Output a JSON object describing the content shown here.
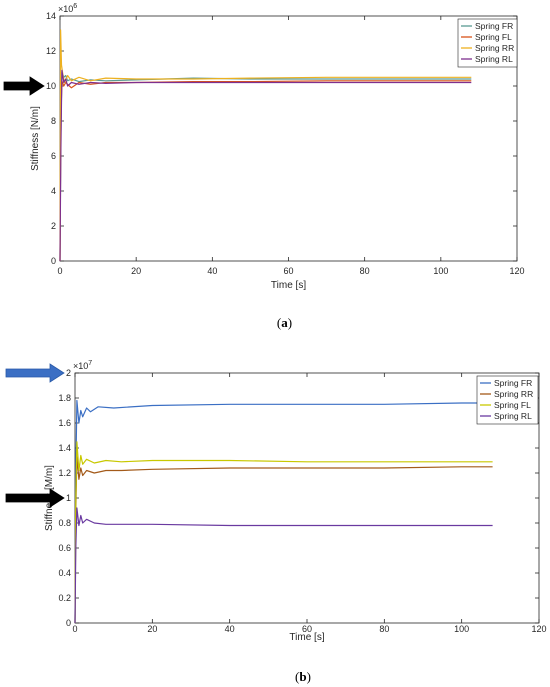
{
  "chart_data": [
    {
      "type": "line",
      "caption": {
        "open": "(",
        "letter": "a",
        "close": ")"
      },
      "xlabel": "Time [s]",
      "ylabel": "Stiffness [N/m]",
      "exponent": {
        "base": "×10",
        "power": "6"
      },
      "xlim": [
        0,
        120
      ],
      "ylim": [
        0,
        14
      ],
      "xticks": [
        "0",
        "20",
        "40",
        "60",
        "80",
        "100",
        "120"
      ],
      "yticks": [
        "0",
        "2",
        "4",
        "6",
        "8",
        "10",
        "12",
        "14"
      ],
      "legend_position": "top-right",
      "arrows": [
        {
          "color": "#000000",
          "y": 10
        }
      ],
      "series": [
        {
          "name": "Spring FR",
          "color": "#5b9a93",
          "x": [
            0,
            0.2,
            0.5,
            1,
            1.5,
            2,
            3,
            5,
            8,
            12,
            20,
            35,
            50,
            70,
            90,
            108
          ],
          "y": [
            0,
            7,
            10.8,
            10.5,
            10.6,
            10.3,
            10.4,
            10.25,
            10.35,
            10.3,
            10.35,
            10.45,
            10.4,
            10.4,
            10.4,
            10.4
          ]
        },
        {
          "name": "Spring FL",
          "color": "#d95319",
          "x": [
            0,
            0.2,
            0.5,
            1,
            1.5,
            2,
            3,
            5,
            8,
            12,
            20,
            35,
            50,
            70,
            90,
            108
          ],
          "y": [
            0,
            8,
            10.3,
            10.0,
            10.2,
            10.1,
            9.9,
            10.2,
            10.1,
            10.2,
            10.2,
            10.25,
            10.25,
            10.3,
            10.3,
            10.3
          ]
        },
        {
          "name": "Spring RR",
          "color": "#edb120",
          "x": [
            0,
            0.15,
            0.4,
            0.8,
            1.2,
            2,
            3,
            5,
            8,
            12,
            20,
            35,
            50,
            70,
            90,
            108
          ],
          "y": [
            0,
            13.2,
            11.2,
            10.6,
            10.2,
            10.6,
            10.3,
            10.5,
            10.3,
            10.45,
            10.4,
            10.4,
            10.45,
            10.5,
            10.5,
            10.5
          ]
        },
        {
          "name": "Spring RL",
          "color": "#7e2f8e",
          "x": [
            0,
            0.2,
            0.5,
            1,
            1.5,
            2,
            3,
            5,
            8,
            12,
            20,
            35,
            50,
            70,
            90,
            108
          ],
          "y": [
            0,
            6,
            10.9,
            10.2,
            10.4,
            10.0,
            10.2,
            10.1,
            10.2,
            10.15,
            10.2,
            10.2,
            10.2,
            10.2,
            10.2,
            10.2
          ]
        }
      ]
    },
    {
      "type": "line",
      "caption": {
        "open": "(",
        "letter": "b",
        "close": ")"
      },
      "xlabel": "Time [s]",
      "ylabel": "Stiffness [M/m]",
      "exponent": {
        "base": "×10",
        "power": "7"
      },
      "xlim": [
        0,
        120
      ],
      "ylim": [
        0,
        2
      ],
      "xticks": [
        "0",
        "20",
        "40",
        "60",
        "80",
        "100",
        "120"
      ],
      "yticks": [
        "0",
        "0.2",
        "0.4",
        "0.6",
        "0.8",
        "1",
        "1.2",
        "1.4",
        "1.6",
        "1.8",
        "2"
      ],
      "legend_position": "top-right",
      "arrows": [
        {
          "color": "#3b6fc4",
          "y": 2
        },
        {
          "color": "#000000",
          "y": 1.0
        }
      ],
      "series": [
        {
          "name": "Spring FR",
          "color": "#3b6fc4",
          "x": [
            0,
            0.2,
            0.5,
            1,
            1.5,
            2,
            3,
            4,
            6,
            10,
            20,
            40,
            60,
            80,
            100,
            108
          ],
          "y": [
            0,
            1.2,
            1.78,
            1.6,
            1.7,
            1.65,
            1.72,
            1.69,
            1.73,
            1.72,
            1.74,
            1.75,
            1.75,
            1.75,
            1.76,
            1.76
          ]
        },
        {
          "name": "Spring RR",
          "color": "#a35a1a",
          "x": [
            0,
            0.2,
            0.5,
            1,
            1.5,
            2,
            3,
            5,
            8,
            12,
            20,
            40,
            60,
            80,
            100,
            108
          ],
          "y": [
            0,
            0.9,
            1.33,
            1.15,
            1.24,
            1.18,
            1.22,
            1.2,
            1.22,
            1.22,
            1.23,
            1.24,
            1.24,
            1.24,
            1.25,
            1.25
          ]
        },
        {
          "name": "Spring FL",
          "color": "#c8c800",
          "x": [
            0,
            0.2,
            0.5,
            1,
            1.5,
            2,
            3,
            5,
            8,
            12,
            20,
            40,
            60,
            80,
            100,
            108
          ],
          "y": [
            0,
            1.0,
            1.45,
            1.22,
            1.34,
            1.27,
            1.31,
            1.28,
            1.3,
            1.29,
            1.3,
            1.3,
            1.29,
            1.29,
            1.29,
            1.29
          ]
        },
        {
          "name": "Spring RL",
          "color": "#6a3aa0",
          "x": [
            0,
            0.2,
            0.5,
            1,
            1.5,
            2,
            3,
            5,
            8,
            12,
            20,
            40,
            60,
            80,
            100,
            108
          ],
          "y": [
            0,
            0.6,
            0.92,
            0.78,
            0.86,
            0.8,
            0.83,
            0.8,
            0.79,
            0.79,
            0.79,
            0.78,
            0.78,
            0.78,
            0.78,
            0.78
          ]
        }
      ]
    }
  ]
}
